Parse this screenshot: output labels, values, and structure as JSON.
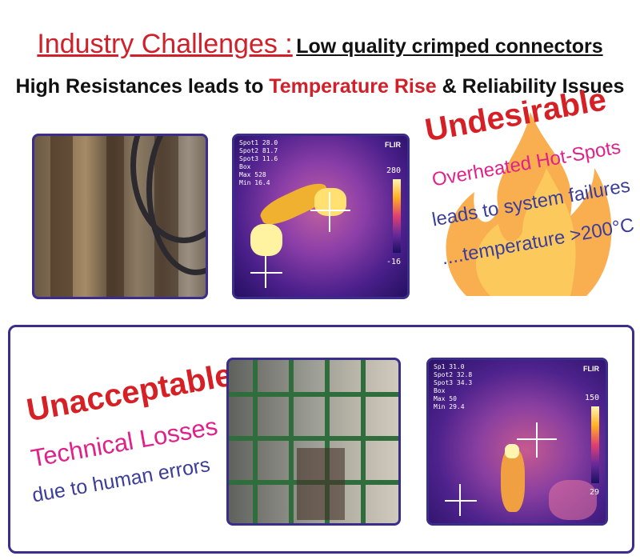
{
  "header": {
    "title_red": "Industry Challenges :",
    "title_black": "Low quality crimped connectors",
    "subtitle_part1": "High Resistances leads to ",
    "subtitle_red": "Temperature Rise",
    "subtitle_part2": " & Reliability Issues"
  },
  "top_section": {
    "callout_title": "Undesirable",
    "callout_line1": "Overheated Hot-Spots",
    "callout_line2": "leads to system failures",
    "callout_line3": "....temperature >200°C",
    "thermal_image": {
      "brand": "FLIR",
      "readout": [
        "Spot1 28.0",
        "Spot2 81.7",
        "Spot3 11.6",
        "Box",
        "Max 528",
        "Min 16.4"
      ],
      "scale_max": "280",
      "scale_min": "-16"
    }
  },
  "bottom_section": {
    "callout_title": "Unacceptable",
    "callout_line1": "Technical Losses",
    "callout_line2": "due to human errors",
    "thermal_image": {
      "brand": "FLIR",
      "readout": [
        "Sp1 31.0",
        "Spot2 32.8",
        "Spot3 34.3",
        "Box",
        "Max 50",
        "Min 29.4"
      ],
      "scale_max": "150",
      "scale_min": "29"
    }
  },
  "colors": {
    "accent_red": "#d52026",
    "magenta": "#e0218a",
    "navy": "#3b3d9a",
    "frame": "#3a2d8c"
  }
}
